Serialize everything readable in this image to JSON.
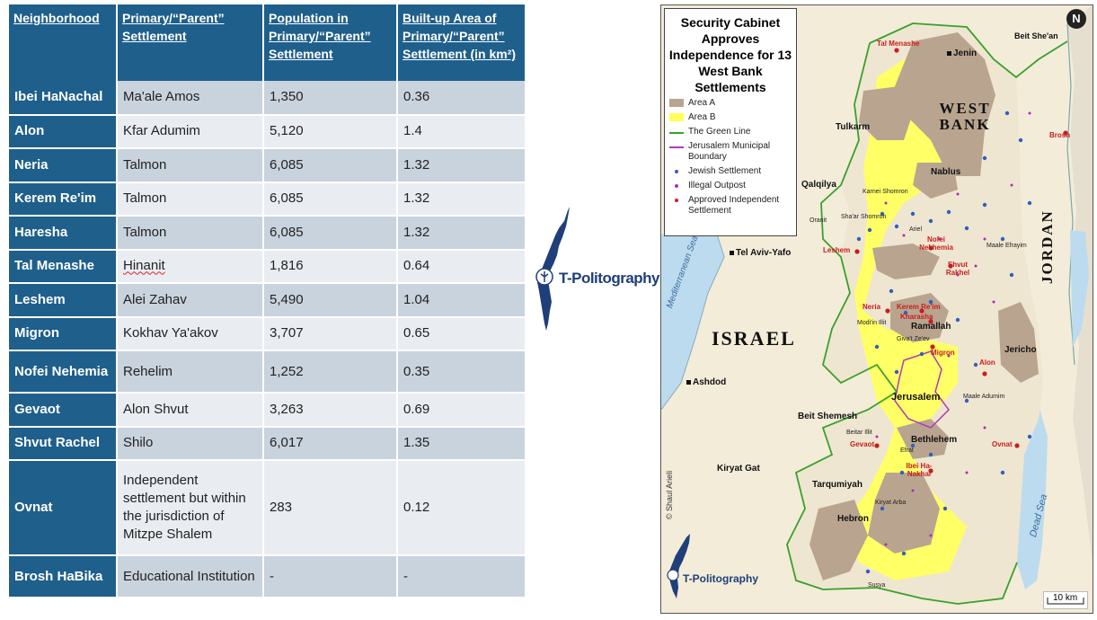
{
  "table": {
    "headers": [
      "Neighborhood",
      "Primary/“Parent” Settlement",
      "Population in Primary/“Parent” Settlement",
      "Built-up Area of Primary/“Parent” Settlement (in km²)"
    ],
    "rows": [
      {
        "neighborhood": "Ibei HaNachal",
        "parent": "Ma'ale Amos",
        "population": "1,350",
        "area": "0.36"
      },
      {
        "neighborhood": "Alon",
        "parent": "Kfar Adumim",
        "population": "5,120",
        "area": "1.4"
      },
      {
        "neighborhood": "Neria",
        "parent": "Talmon",
        "population": "6,085",
        "area": "1.32"
      },
      {
        "neighborhood": "Kerem Re'im",
        "parent": "Talmon",
        "population": "6,085",
        "area": "1.32"
      },
      {
        "neighborhood": "Haresha",
        "parent": "Talmon",
        "population": "6,085",
        "area": "1.32"
      },
      {
        "neighborhood": "Tal Menashe",
        "parent": "Hinanit",
        "population": "1,816",
        "area": "0.64"
      },
      {
        "neighborhood": "Leshem",
        "parent": "Alei Zahav",
        "population": "5,490",
        "area": "1.04"
      },
      {
        "neighborhood": "Migron",
        "parent": "Kokhav Ya'akov",
        "population": "3,707",
        "area": "0.65"
      },
      {
        "neighborhood": "Nofei Nehemia",
        "parent": "Rehelim",
        "population": "1,252",
        "area": "0.35"
      },
      {
        "neighborhood": "Gevaot",
        "parent": "Alon Shvut",
        "population": "3,263",
        "area": "0.69"
      },
      {
        "neighborhood": "Shvut Rachel",
        "parent": "Shilo",
        "population": "6,017",
        "area": "1.35"
      },
      {
        "neighborhood": "Ovnat",
        "parent": "Independent settlement but within the jurisdiction of Mitzpe Shalem",
        "population": "283",
        "area": "0.12"
      },
      {
        "neighborhood": "Brosh HaBika",
        "parent": "Educational Institution",
        "population": "-",
        "area": "-"
      }
    ]
  },
  "logo": {
    "brand": "T-Politography",
    "color": "#1f3f7a"
  },
  "map": {
    "title": "Security Cabinet Approves Independence for 13 West Bank Settlements",
    "legend": [
      {
        "label": "Area A",
        "kind": "fill",
        "color": "#b8a58f"
      },
      {
        "label": "Area B",
        "kind": "fill",
        "color": "#ffff5a"
      },
      {
        "label": "The Green Line",
        "kind": "line",
        "color": "#3aa02c"
      },
      {
        "label": "Jerusalem Municipal Boundary",
        "kind": "line",
        "color": "#b03ab8"
      },
      {
        "label": "Jewish Settlement",
        "kind": "dot",
        "color": "#2f5fc0"
      },
      {
        "label": "Illegal Outpost",
        "kind": "dot",
        "color": "#b02ab8"
      },
      {
        "label": "Approved Independent Settlement",
        "kind": "dot",
        "color": "#c81d1d"
      }
    ],
    "regions": {
      "west_bank": "WEST BANK",
      "israel": "ISRAEL",
      "jordan": "JORDAN",
      "sea": "Mediterranean Sea",
      "dead_sea": "Dead Sea"
    },
    "cities": {
      "jenin": "Jenin",
      "tulkarm": "Tulkarm",
      "nablus": "Nablus",
      "qalqilya": "Qalqilya",
      "tel_aviv": "Tel Aviv-Yafo",
      "ramallah": "Ramallah",
      "jericho": "Jericho",
      "ashdod": "Ashdod",
      "jerusalem": "Jerusalem",
      "beit_shemesh": "Beit Shemesh",
      "bethlehem": "Bethlehem",
      "kiryat_gat": "Kiryat Gat",
      "tarqumiyah": "Tarqumiyah",
      "hebron": "Hebron",
      "beit_shean": "Beit She'an"
    },
    "small_places": {
      "karnei_shomron": "Karnei Shomron",
      "oranit": "Oranit",
      "shaar_shomron": "Sha'ar Shomron",
      "ariel": "Ariel",
      "maale_efrayim": "Maale Efrayim",
      "modiin_illit": "Modi'in Illit",
      "givat_zeev": "Giva't Ze'ev",
      "maale_adumim": "Maale Adumim",
      "beitar_illit": "Beitar Illit",
      "efrat": "Efrat",
      "kiryat_arba": "Kiryat Arba",
      "susya": "Susya"
    },
    "approved": {
      "tal_menashe": "Tal Menashe",
      "brosh": "Brosh",
      "leshem": "Leshem",
      "nofei_nekhemia": "Nofei Nekhemia",
      "shvut_rakhel": "Shvut Rakhel",
      "neria": "Neria",
      "kerem_reim": "Kerem Re'im",
      "kharasha": "Kharasha",
      "migron": "Migron",
      "alon": "Alon",
      "gevaot": "Gevaot",
      "ovnat": "Ovnat",
      "ibei_hanakhal": "Ibei Ha-Nakhal"
    },
    "credit": "© Shaul Arieli",
    "scale": "10 km",
    "north": "N"
  }
}
